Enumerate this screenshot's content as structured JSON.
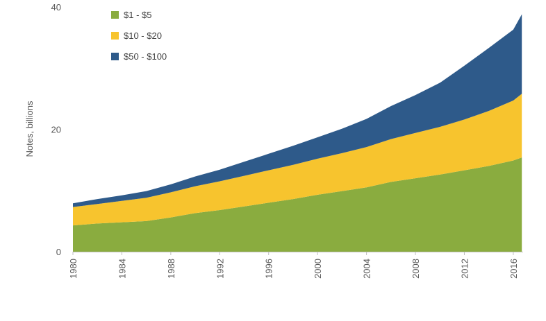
{
  "chart_data": {
    "type": "area",
    "stacked": true,
    "ylabel": "Notes, billions",
    "xlabel": "",
    "xlim": [
      1980,
      2016.8
    ],
    "ylim": [
      0,
      40
    ],
    "y_ticks": [
      0,
      20,
      40
    ],
    "x_ticks": [
      1980,
      1984,
      1988,
      1992,
      1996,
      2000,
      2004,
      2008,
      2012,
      2016
    ],
    "grid": false,
    "legend_position": "top-left",
    "x": [
      1980,
      1982,
      1984,
      1986,
      1988,
      1990,
      1992,
      1994,
      1996,
      1998,
      2000,
      2002,
      2004,
      2006,
      2008,
      2010,
      2012,
      2014,
      2016,
      2016.7
    ],
    "series": [
      {
        "name": "$1 - $5",
        "color": "#8aac3f",
        "values": [
          4.3,
          4.6,
          4.8,
          5.0,
          5.6,
          6.3,
          6.8,
          7.4,
          8.0,
          8.6,
          9.3,
          9.9,
          10.5,
          11.4,
          12.0,
          12.6,
          13.3,
          14.0,
          14.9,
          15.4
        ]
      },
      {
        "name": "$10 - $20",
        "color": "#f7c42e",
        "values": [
          3.0,
          3.2,
          3.5,
          3.8,
          4.1,
          4.4,
          4.7,
          5.0,
          5.3,
          5.6,
          5.9,
          6.2,
          6.6,
          7.0,
          7.4,
          7.8,
          8.3,
          9.0,
          9.8,
          10.4
        ]
      },
      {
        "name": "$50 - $100",
        "color": "#2e5a8a",
        "values": [
          0.6,
          0.8,
          0.9,
          1.1,
          1.3,
          1.6,
          1.9,
          2.3,
          2.7,
          3.1,
          3.5,
          4.0,
          4.6,
          5.4,
          6.2,
          7.2,
          8.8,
          10.3,
          11.6,
          13.0
        ]
      }
    ]
  }
}
